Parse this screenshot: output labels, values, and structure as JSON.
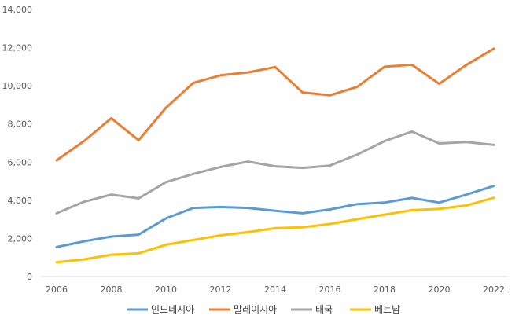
{
  "chart_data": {
    "type": "line",
    "title": "",
    "xlabel": "",
    "ylabel": "",
    "x": [
      2006,
      2007,
      2008,
      2009,
      2010,
      2011,
      2012,
      2013,
      2014,
      2015,
      2016,
      2017,
      2018,
      2019,
      2020,
      2021,
      2022
    ],
    "x_tick_labels": [
      "2006",
      "2008",
      "2010",
      "2012",
      "2014",
      "2016",
      "2018",
      "2020",
      "2022"
    ],
    "y_tick_labels": [
      "0",
      "2,000",
      "4,000",
      "6,000",
      "8,000",
      "10,000",
      "12,000",
      "14,000"
    ],
    "ylim": [
      0,
      14000
    ],
    "grid": false,
    "legend_position": "bottom",
    "series": [
      {
        "name": "인도네시아",
        "color": "#5B9BD5",
        "values": [
          1550,
          1850,
          2100,
          2200,
          3050,
          3600,
          3650,
          3600,
          3450,
          3320,
          3520,
          3800,
          3880,
          4120,
          3880,
          4300,
          4750
        ]
      },
      {
        "name": "말레이시아",
        "color": "#ED7D31",
        "values": [
          6100,
          7100,
          8300,
          7150,
          8850,
          10150,
          10550,
          10700,
          10980,
          9650,
          9500,
          9950,
          11000,
          11100,
          10100,
          11100,
          11950
        ]
      },
      {
        "name": "태국",
        "color": "#A5A5A5",
        "values": [
          3320,
          3920,
          4300,
          4100,
          4950,
          5380,
          5750,
          6030,
          5780,
          5700,
          5820,
          6400,
          7100,
          7600,
          6980,
          7050,
          6900
        ]
      },
      {
        "name": "베트남",
        "color": "#FFC000",
        "values": [
          750,
          900,
          1150,
          1220,
          1670,
          1920,
          2160,
          2330,
          2540,
          2580,
          2760,
          3010,
          3250,
          3480,
          3550,
          3730,
          4130
        ]
      }
    ]
  }
}
